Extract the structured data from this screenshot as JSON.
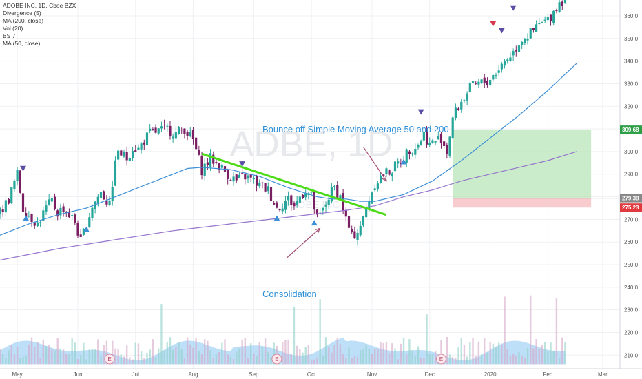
{
  "legend": {
    "symbol": "ADOBE INC, 1D, Cboe BZX",
    "ind1": "Divergence (5)",
    "ind2": "MA (200, close)",
    "ind3": "Vol (20)",
    "ind4": "BS 7",
    "ind5": "MA (50, close)"
  },
  "watermark": {
    "text": "ADBE, 1D",
    "sub": "ADOBE INC"
  },
  "annotations": {
    "bounce": "Bounce off Simple Moving Average 50 and 200",
    "consolidation": "Consolidation"
  },
  "colors": {
    "up": "#26a69a",
    "down": "#7b1f63",
    "ma50": "#3d8fd6",
    "ma200": "#9575cd",
    "trend": "#4cdb16",
    "arrow": "#a44d72",
    "zoneGreen": "#b8e6b8",
    "zoneRed": "#f7c3c5",
    "vol": "#a8d4f5",
    "annot": "#2b8fd9",
    "markerUp": "#3d8fd6",
    "markerDown": "#5b4ea5",
    "markerRed": "#d7364c"
  },
  "price_labels": {
    "target": "309.68",
    "entry": "279.38",
    "stop": "275.23"
  },
  "chart_data": {
    "type": "candlestick",
    "title": "ADOBE INC, 1D, Cboe BZX",
    "x_ticks": [
      "May",
      "Jun",
      "Jul",
      "Aug",
      "Sep",
      "Oct",
      "Nov",
      "Dec",
      "2020",
      "Feb",
      "Mar"
    ],
    "y_ticks": [
      210,
      220,
      230,
      240,
      250,
      260,
      270,
      280,
      290,
      300,
      310,
      320,
      330,
      340,
      350,
      360
    ],
    "ylim": [
      204,
      367
    ],
    "xlim": [
      0,
      215
    ],
    "tick_positions_index": [
      6,
      27,
      47,
      67,
      88,
      108,
      129,
      149,
      170,
      190,
      209
    ],
    "price_anchors": [
      [
        0,
        273
      ],
      [
        3,
        279
      ],
      [
        6,
        290
      ],
      [
        8,
        275
      ],
      [
        10,
        272
      ],
      [
        13,
        268
      ],
      [
        16,
        275
      ],
      [
        18,
        278
      ],
      [
        20,
        273
      ],
      [
        22,
        275
      ],
      [
        24,
        272
      ],
      [
        26,
        269
      ],
      [
        28,
        260
      ],
      [
        30,
        268
      ],
      [
        32,
        276
      ],
      [
        35,
        282
      ],
      [
        37,
        278
      ],
      [
        39,
        282
      ],
      [
        40,
        298
      ],
      [
        42,
        299
      ],
      [
        44,
        297
      ],
      [
        46,
        302
      ],
      [
        48,
        301
      ],
      [
        50,
        305
      ],
      [
        52,
        308
      ],
      [
        55,
        309
      ],
      [
        58,
        310
      ],
      [
        61,
        308
      ],
      [
        64,
        310
      ],
      [
        67,
        305
      ],
      [
        70,
        292
      ],
      [
        73,
        297
      ],
      [
        76,
        294
      ],
      [
        79,
        290
      ],
      [
        82,
        287
      ],
      [
        85,
        289
      ],
      [
        88,
        287
      ],
      [
        90,
        285
      ],
      [
        93,
        283
      ],
      [
        96,
        275
      ],
      [
        98,
        277
      ],
      [
        100,
        279
      ],
      [
        102,
        276
      ],
      [
        104,
        280
      ],
      [
        106,
        283
      ],
      [
        108,
        280
      ],
      [
        110,
        270
      ],
      [
        112,
        274
      ],
      [
        114,
        280
      ],
      [
        116,
        284
      ],
      [
        118,
        280
      ],
      [
        120,
        270
      ],
      [
        122,
        262
      ],
      [
        124,
        265
      ],
      [
        126,
        270
      ],
      [
        128,
        279
      ],
      [
        130,
        286
      ],
      [
        133,
        290
      ],
      [
        136,
        292
      ],
      [
        139,
        296
      ],
      [
        142,
        301
      ],
      [
        145,
        303
      ],
      [
        147,
        308
      ],
      [
        149,
        303
      ],
      [
        151,
        305
      ],
      [
        153,
        306
      ],
      [
        155,
        300
      ],
      [
        157,
        315
      ],
      [
        160,
        322
      ],
      [
        163,
        328
      ],
      [
        166,
        330
      ],
      [
        169,
        331
      ],
      [
        172,
        335
      ],
      [
        175,
        340
      ],
      [
        178,
        344
      ],
      [
        181,
        350
      ],
      [
        184,
        352
      ],
      [
        187,
        356
      ],
      [
        190,
        358
      ],
      [
        192,
        362
      ],
      [
        194,
        366
      ],
      [
        196,
        368
      ]
    ],
    "ma50": [
      [
        0,
        263
      ],
      [
        10,
        268
      ],
      [
        20,
        272
      ],
      [
        30,
        275
      ],
      [
        40,
        280
      ],
      [
        50,
        285
      ],
      [
        60,
        290
      ],
      [
        65,
        292.5
      ],
      [
        70,
        293
      ],
      [
        80,
        292
      ],
      [
        90,
        289
      ],
      [
        100,
        284
      ],
      [
        110,
        280
      ],
      [
        115,
        279
      ],
      [
        120,
        279
      ],
      [
        125,
        278
      ],
      [
        130,
        278
      ],
      [
        140,
        281
      ],
      [
        150,
        287
      ],
      [
        160,
        296
      ],
      [
        170,
        306
      ],
      [
        180,
        316
      ],
      [
        190,
        327
      ],
      [
        200,
        339
      ]
    ],
    "ma200": [
      [
        0,
        252
      ],
      [
        20,
        257
      ],
      [
        40,
        261
      ],
      [
        60,
        265
      ],
      [
        80,
        268
      ],
      [
        100,
        271
      ],
      [
        120,
        274
      ],
      [
        130,
        276
      ],
      [
        140,
        280
      ],
      [
        150,
        283
      ],
      [
        160,
        287
      ],
      [
        170,
        290
      ],
      [
        180,
        293
      ],
      [
        190,
        296
      ],
      [
        200,
        300
      ]
    ],
    "trendline": [
      [
        70,
        299
      ],
      [
        134,
        272
      ]
    ],
    "zones": {
      "x": [
        157,
        205
      ],
      "target": 309.68,
      "entry": 279.38,
      "stop": 275.23
    },
    "markers_up": [
      [
        9,
        273
      ],
      [
        30,
        268
      ],
      [
        96,
        273
      ],
      [
        109,
        271
      ],
      [
        140,
        298
      ]
    ],
    "markers_down": [
      [
        8,
        290
      ],
      [
        84,
        292
      ],
      [
        146,
        315
      ],
      [
        174,
        351
      ],
      [
        178,
        361
      ]
    ],
    "markers_red": [
      [
        171,
        354
      ]
    ],
    "earnings_x": [
      38,
      96,
      153
    ]
  }
}
